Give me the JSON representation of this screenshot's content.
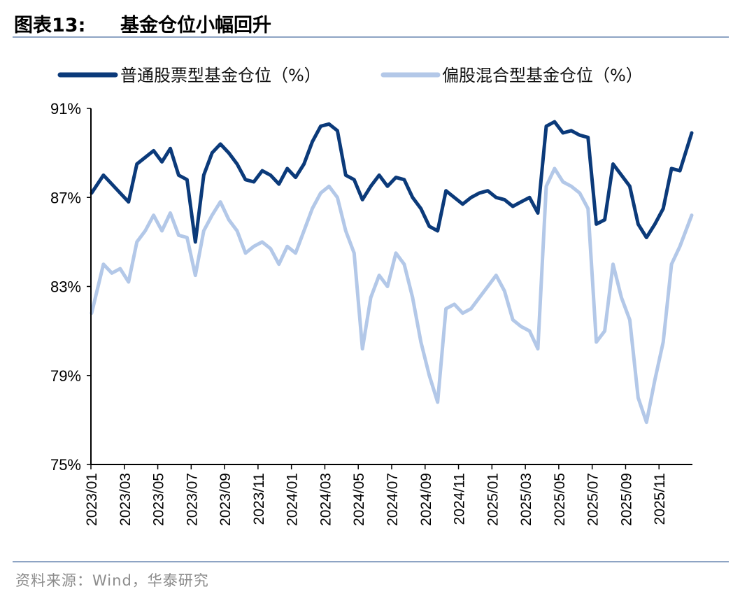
{
  "header": {
    "figure_label": "图表13:",
    "title": "基金仓位小幅回升"
  },
  "footer": {
    "source": "资料来源：Wind，华泰研究"
  },
  "colors": {
    "series_stock": "#0b3a7a",
    "series_hybrid": "#b3c8e8",
    "rule": "#8ea4c4"
  },
  "chart_data": {
    "type": "line",
    "title": "",
    "xlabel": "",
    "ylabel": "",
    "ylim": [
      75,
      91
    ],
    "y_ticks": [
      "91%",
      "87%",
      "83%",
      "79%",
      "75%"
    ],
    "y_tick_values": [
      91,
      87,
      83,
      79,
      75
    ],
    "x_ticks": [
      "2023/01",
      "2023/03",
      "2023/05",
      "2023/07",
      "2023/09",
      "2023/11",
      "2024/01",
      "2024/03",
      "2024/05",
      "2024/07",
      "2024/09",
      "2024/11",
      "2025/01",
      "2025/03",
      "2025/05",
      "2025/07",
      "2025/09",
      "2025/11"
    ],
    "x_range": [
      "2023/01",
      "2025/12"
    ],
    "legend": {
      "position": "top"
    },
    "series": [
      {
        "name": "普通股票型基金仓位（%）",
        "points": [
          [
            "2023/01",
            87.2
          ],
          [
            "2023/01",
            88.0
          ],
          [
            "2023/02",
            87.6
          ],
          [
            "2023/02",
            87.2
          ],
          [
            "2023/03",
            86.8
          ],
          [
            "2023/03",
            88.5
          ],
          [
            "2023/04",
            88.8
          ],
          [
            "2023/04",
            89.1
          ],
          [
            "2023/05",
            88.6
          ],
          [
            "2023/05",
            89.2
          ],
          [
            "2023/06",
            88.0
          ],
          [
            "2023/06",
            87.8
          ],
          [
            "2023/07",
            85.0
          ],
          [
            "2023/07",
            88.0
          ],
          [
            "2023/08",
            89.0
          ],
          [
            "2023/08",
            89.4
          ],
          [
            "2023/09",
            89.0
          ],
          [
            "2023/09",
            88.5
          ],
          [
            "2023/10",
            87.8
          ],
          [
            "2023/10",
            87.7
          ],
          [
            "2023/11",
            88.2
          ],
          [
            "2023/11",
            88.0
          ],
          [
            "2023/12",
            87.6
          ],
          [
            "2023/12",
            88.3
          ],
          [
            "2024/01",
            87.9
          ],
          [
            "2024/01",
            88.5
          ],
          [
            "2024/02",
            89.5
          ],
          [
            "2024/02",
            90.2
          ],
          [
            "2024/03",
            90.3
          ],
          [
            "2024/03",
            90.0
          ],
          [
            "2024/04",
            88.0
          ],
          [
            "2024/04",
            87.8
          ],
          [
            "2024/05",
            86.9
          ],
          [
            "2024/05",
            87.5
          ],
          [
            "2024/06",
            88.0
          ],
          [
            "2024/06",
            87.5
          ],
          [
            "2024/07",
            87.9
          ],
          [
            "2024/07",
            87.8
          ],
          [
            "2024/08",
            87.0
          ],
          [
            "2024/08",
            86.5
          ],
          [
            "2024/09",
            85.7
          ],
          [
            "2024/09",
            85.5
          ],
          [
            "2024/10",
            87.3
          ],
          [
            "2024/10",
            87.0
          ],
          [
            "2024/11",
            86.7
          ],
          [
            "2024/11",
            87.0
          ],
          [
            "2024/12",
            87.2
          ],
          [
            "2024/12",
            87.3
          ],
          [
            "2025/01",
            87.0
          ],
          [
            "2025/01",
            86.9
          ],
          [
            "2025/02",
            86.6
          ],
          [
            "2025/02",
            86.8
          ],
          [
            "2025/03",
            87.0
          ],
          [
            "2025/03",
            86.3
          ],
          [
            "2025/04",
            90.2
          ],
          [
            "2025/04",
            90.4
          ],
          [
            "2025/05",
            89.9
          ],
          [
            "2025/05",
            90.0
          ],
          [
            "2025/06",
            89.8
          ],
          [
            "2025/06",
            89.7
          ],
          [
            "2025/07",
            85.8
          ],
          [
            "2025/07",
            86.0
          ],
          [
            "2025/08",
            88.5
          ],
          [
            "2025/08",
            88.0
          ],
          [
            "2025/09",
            87.5
          ],
          [
            "2025/09",
            85.8
          ],
          [
            "2025/10",
            85.2
          ],
          [
            "2025/10",
            85.8
          ],
          [
            "2025/11",
            86.5
          ],
          [
            "2025/11",
            88.3
          ],
          [
            "2025/12",
            88.2
          ],
          [
            "2025/12",
            89.9
          ]
        ]
      },
      {
        "name": "偏股混合型基金仓位（%）",
        "points": [
          [
            "2023/01",
            81.8
          ],
          [
            "2023/01",
            84.0
          ],
          [
            "2023/02",
            83.6
          ],
          [
            "2023/02",
            83.8
          ],
          [
            "2023/03",
            83.2
          ],
          [
            "2023/03",
            85.0
          ],
          [
            "2023/04",
            85.5
          ],
          [
            "2023/04",
            86.2
          ],
          [
            "2023/05",
            85.5
          ],
          [
            "2023/05",
            86.3
          ],
          [
            "2023/06",
            85.3
          ],
          [
            "2023/06",
            85.2
          ],
          [
            "2023/07",
            83.5
          ],
          [
            "2023/07",
            85.5
          ],
          [
            "2023/08",
            86.2
          ],
          [
            "2023/08",
            86.8
          ],
          [
            "2023/09",
            86.0
          ],
          [
            "2023/09",
            85.5
          ],
          [
            "2023/10",
            84.5
          ],
          [
            "2023/10",
            84.8
          ],
          [
            "2023/11",
            85.0
          ],
          [
            "2023/11",
            84.7
          ],
          [
            "2023/12",
            84.0
          ],
          [
            "2023/12",
            84.8
          ],
          [
            "2024/01",
            84.5
          ],
          [
            "2024/01",
            85.5
          ],
          [
            "2024/02",
            86.5
          ],
          [
            "2024/02",
            87.2
          ],
          [
            "2024/03",
            87.5
          ],
          [
            "2024/03",
            87.0
          ],
          [
            "2024/04",
            85.5
          ],
          [
            "2024/04",
            84.5
          ],
          [
            "2024/05",
            80.2
          ],
          [
            "2024/05",
            82.5
          ],
          [
            "2024/06",
            83.5
          ],
          [
            "2024/06",
            83.0
          ],
          [
            "2024/07",
            84.5
          ],
          [
            "2024/07",
            84.0
          ],
          [
            "2024/08",
            82.5
          ],
          [
            "2024/08",
            80.5
          ],
          [
            "2024/09",
            79.0
          ],
          [
            "2024/09",
            77.8
          ],
          [
            "2024/10",
            82.0
          ],
          [
            "2024/10",
            82.2
          ],
          [
            "2024/11",
            81.8
          ],
          [
            "2024/11",
            82.0
          ],
          [
            "2024/12",
            82.5
          ],
          [
            "2024/12",
            83.0
          ],
          [
            "2025/01",
            83.5
          ],
          [
            "2025/01",
            82.8
          ],
          [
            "2025/02",
            81.5
          ],
          [
            "2025/02",
            81.2
          ],
          [
            "2025/03",
            81.0
          ],
          [
            "2025/03",
            80.2
          ],
          [
            "2025/04",
            87.5
          ],
          [
            "2025/04",
            88.3
          ],
          [
            "2025/05",
            87.7
          ],
          [
            "2025/05",
            87.5
          ],
          [
            "2025/06",
            87.2
          ],
          [
            "2025/06",
            86.5
          ],
          [
            "2025/07",
            80.5
          ],
          [
            "2025/07",
            81.0
          ],
          [
            "2025/08",
            84.0
          ],
          [
            "2025/08",
            82.5
          ],
          [
            "2025/09",
            81.5
          ],
          [
            "2025/09",
            78.0
          ],
          [
            "2025/10",
            76.9
          ],
          [
            "2025/10",
            78.8
          ],
          [
            "2025/11",
            80.5
          ],
          [
            "2025/11",
            84.0
          ],
          [
            "2025/12",
            84.8
          ],
          [
            "2025/12",
            86.2
          ]
        ]
      }
    ]
  }
}
